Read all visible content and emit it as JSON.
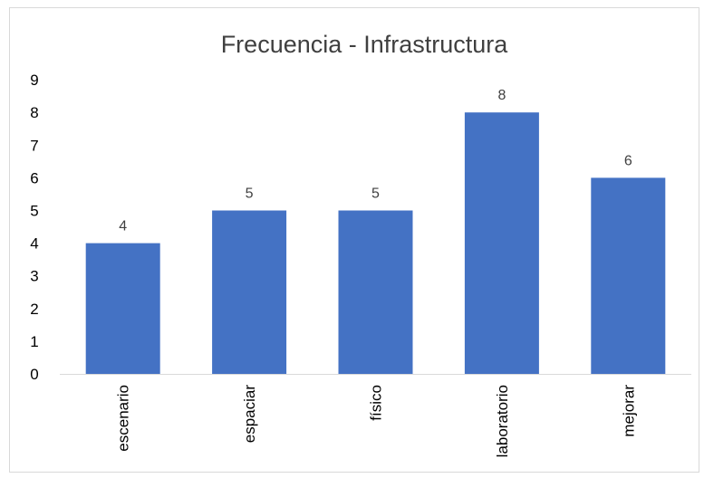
{
  "chart_data": {
    "type": "bar",
    "title": "Frecuencia - Infrastructura",
    "categories": [
      "escenario",
      "espaciar",
      "físico",
      "laboratorio",
      "mejorar"
    ],
    "values": [
      4,
      5,
      5,
      8,
      6
    ],
    "ylim": [
      0,
      9
    ],
    "yticks": [
      "0",
      "1",
      "2",
      "3",
      "4",
      "5",
      "6",
      "7",
      "8",
      "9"
    ],
    "xlabel": "",
    "ylabel": "",
    "grid": false,
    "legend": "none",
    "data_labels": true,
    "bar_color": "#4472c4",
    "axis_color": "#d9d9d9"
  }
}
